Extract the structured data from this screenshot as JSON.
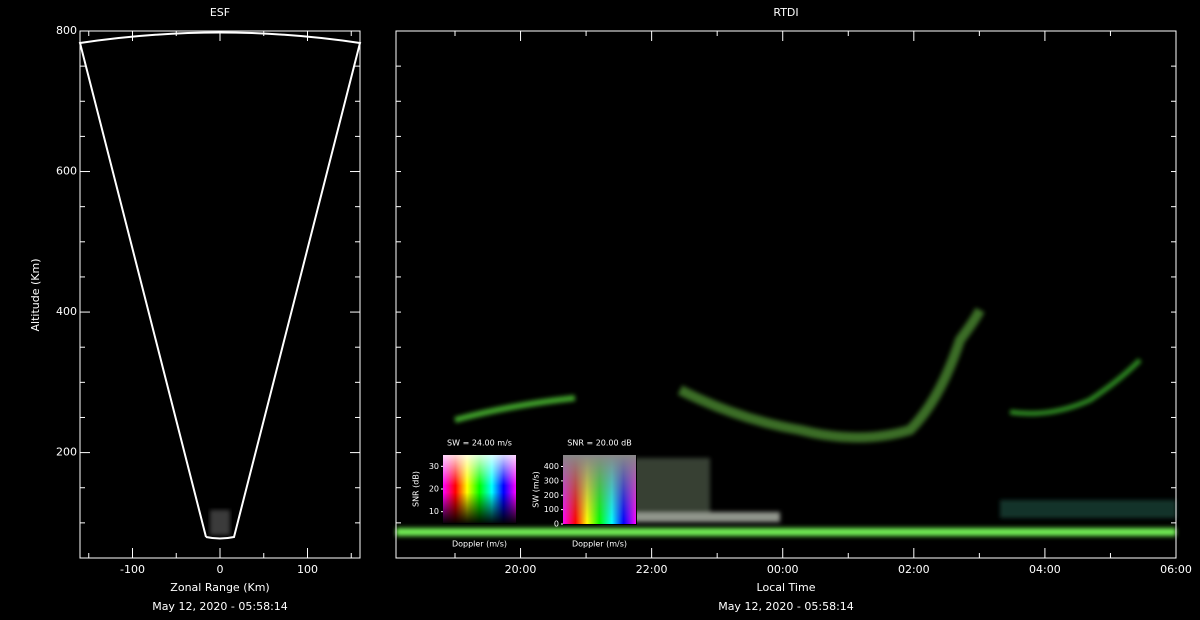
{
  "chart_data": [
    {
      "type": "fan",
      "title": "ESF",
      "xlabel": "Zonal Range (Km)",
      "ylabel": "Altitude (Km)",
      "date": "May 12, 2020 - 05:58:14",
      "xlim": [
        -160,
        160
      ],
      "xticks": [
        -100,
        0,
        100
      ],
      "xminor": [
        -150,
        -50,
        50,
        150
      ],
      "ylim": [
        50,
        800
      ],
      "yticks": [
        200,
        400,
        600,
        800
      ],
      "yminor": [
        100,
        150,
        250,
        300,
        350,
        450,
        500,
        550,
        650,
        700,
        750
      ]
    },
    {
      "type": "rtdi",
      "title": "RTDI",
      "xlabel": "Local Time",
      "date": "May 12, 2020 - 05:58:14",
      "xlim": [
        18.1,
        30
      ],
      "xticks": [
        {
          "value": 20,
          "label": "20:00"
        },
        {
          "value": 22,
          "label": "22:00"
        },
        {
          "value": 24,
          "label": "00:00"
        },
        {
          "value": 26,
          "label": "02:00"
        },
        {
          "value": 28,
          "label": "04:00"
        },
        {
          "value": 30,
          "label": "06:00"
        }
      ],
      "xminor": [
        19,
        21,
        23,
        25,
        27,
        29
      ],
      "ylim": [
        50,
        800
      ],
      "yminor": [
        100,
        150,
        200,
        250,
        300,
        350,
        400,
        450,
        500,
        550,
        600,
        650,
        700,
        750
      ]
    },
    {
      "type": "colorbar",
      "title": "SW = 24.00 m/s",
      "ylabel": "SNR (dB)",
      "xlabel": "Doppler (m/s)",
      "ylim": [
        5,
        35
      ],
      "yticks": [
        10,
        20,
        30
      ],
      "fade": "dark"
    },
    {
      "type": "colorbar",
      "title": "SNR = 20.00 dB",
      "ylabel": "SW (m/s)",
      "xlabel": "Doppler (m/s)",
      "ylim": [
        0,
        480
      ],
      "yticks": [
        0,
        100,
        200,
        300,
        400
      ],
      "fade": "gray"
    }
  ]
}
